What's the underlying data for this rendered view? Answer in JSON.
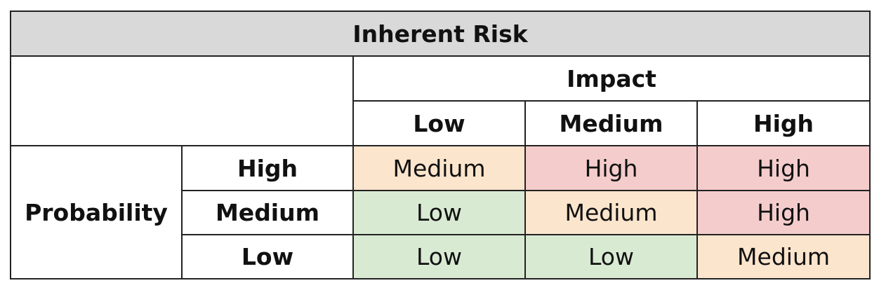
{
  "title": "Inherent Risk",
  "impact_header": "Impact",
  "probability_header": "Probability",
  "impact_levels": [
    "Low",
    "Medium",
    "High"
  ],
  "probability_levels": [
    "High",
    "Medium",
    "Low"
  ],
  "matrix": [
    [
      "Medium",
      "High",
      "High"
    ],
    [
      "Low",
      "Medium",
      "High"
    ],
    [
      "Low",
      "Low",
      "Medium"
    ]
  ],
  "colors": {
    "Low": "#d9ead3",
    "Medium": "#fce5cd",
    "High": "#f4cccc",
    "title_bg": "#d9d9d9",
    "border": "#222222"
  }
}
